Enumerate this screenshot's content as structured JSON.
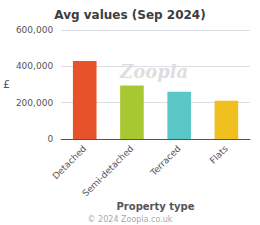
{
  "chart_data": {
    "type": "bar",
    "title": "Avg values (Sep 2024)",
    "categories": [
      "Detached",
      "Semi-detached",
      "Terraced",
      "Flats"
    ],
    "values": [
      430000,
      295000,
      260000,
      210000
    ],
    "colors": [
      "#e8522a",
      "#a8c832",
      "#5bc8c8",
      "#f0c020"
    ],
    "ylabel": "£",
    "xlabel": "Property type",
    "ylim": [
      0,
      600000
    ],
    "yticks": [
      0,
      {
        "value": 200000,
        "label": "200,000"
      },
      {
        "value": 400000,
        "label": "400,000"
      },
      {
        "value": 600000,
        "label": "600,000"
      }
    ],
    "grid": true,
    "annotations": [
      {
        "text": "Zoopla"
      },
      {
        "text": "© 2024 Zoopla.co.uk"
      }
    ]
  }
}
